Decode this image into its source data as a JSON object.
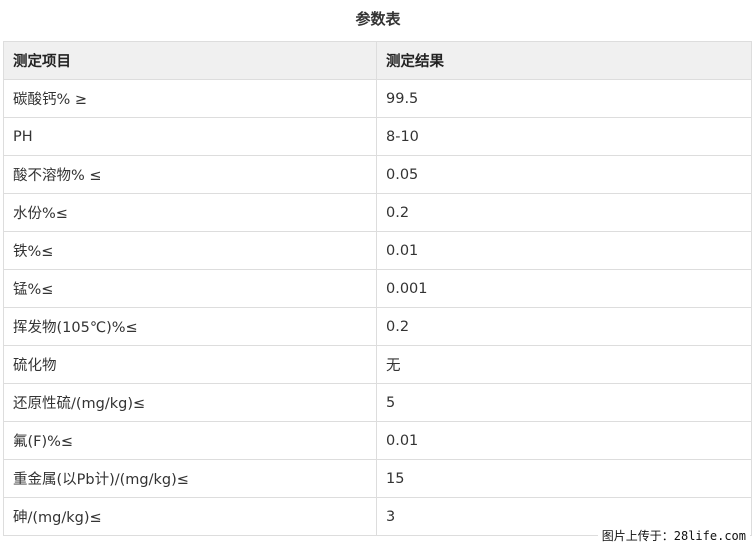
{
  "title": "参数表",
  "table": {
    "headers": [
      "测定项目",
      "测定结果"
    ],
    "rows": [
      [
        "碳酸钙% ≥",
        "99.5"
      ],
      [
        "PH",
        "8-10"
      ],
      [
        "酸不溶物% ≤",
        "0.05"
      ],
      [
        "水份%≤",
        "0.2"
      ],
      [
        "铁%≤",
        "0.01"
      ],
      [
        "锰%≤",
        "0.001"
      ],
      [
        "挥发物(105℃)%≤",
        "0.2"
      ],
      [
        "硫化物",
        "无"
      ],
      [
        "还原性硫/(mg/kg)≤",
        "5"
      ],
      [
        "氟(F)%≤",
        "0.01"
      ],
      [
        "重金属(以Pb计)/(mg/kg)≤",
        "15"
      ],
      [
        "砷/(mg/kg)≤",
        "3"
      ]
    ]
  },
  "watermark": "图片上传于：28life.com"
}
